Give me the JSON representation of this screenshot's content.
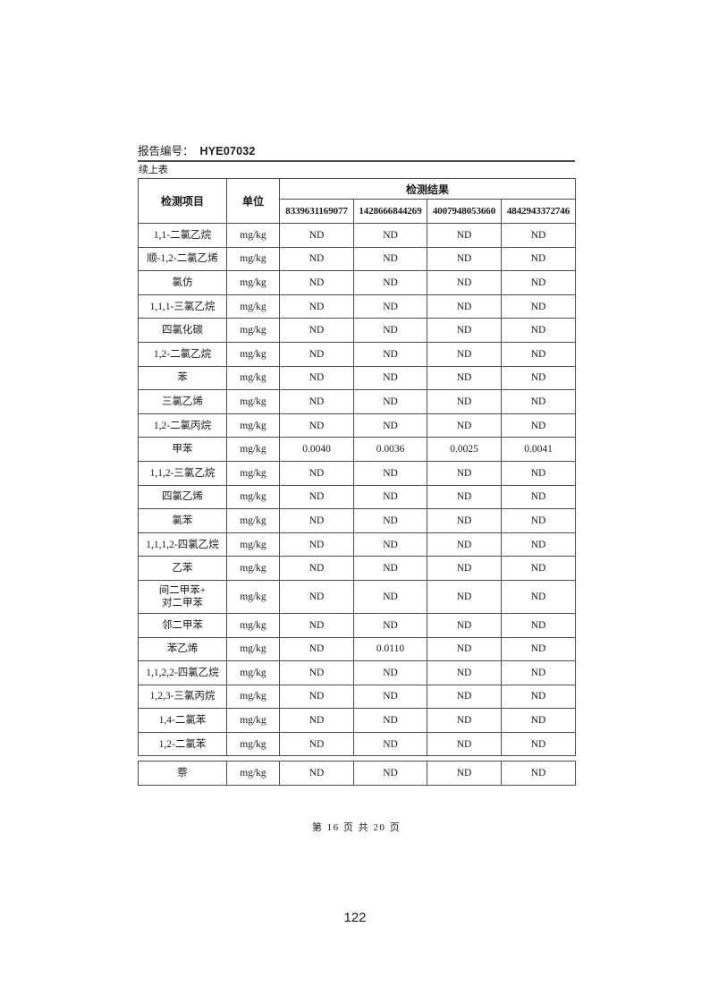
{
  "header": {
    "report_label": "报告编号：",
    "report_number": "HYE07032",
    "continued_note": "续上表"
  },
  "table": {
    "col_item": "检测项目",
    "col_unit": "单位",
    "col_results": "检测结果",
    "sample_ids": [
      "8339631169077",
      "1428666844269",
      "4007948053660",
      "4842943372746"
    ],
    "rows": [
      {
        "item": "1,1-二氯乙烷",
        "unit": "mg/kg",
        "values": [
          "ND",
          "ND",
          "ND",
          "ND"
        ]
      },
      {
        "item": "顺-1,2-二氯乙烯",
        "unit": "mg/kg",
        "values": [
          "ND",
          "ND",
          "ND",
          "ND"
        ]
      },
      {
        "item": "氯仿",
        "unit": "mg/kg",
        "values": [
          "ND",
          "ND",
          "ND",
          "ND"
        ]
      },
      {
        "item": "1,1,1-三氯乙烷",
        "unit": "mg/kg",
        "values": [
          "ND",
          "ND",
          "ND",
          "ND"
        ]
      },
      {
        "item": "四氯化碳",
        "unit": "mg/kg",
        "values": [
          "ND",
          "ND",
          "ND",
          "ND"
        ]
      },
      {
        "item": "1,2-二氯乙烷",
        "unit": "mg/kg",
        "values": [
          "ND",
          "ND",
          "ND",
          "ND"
        ]
      },
      {
        "item": "苯",
        "unit": "mg/kg",
        "values": [
          "ND",
          "ND",
          "ND",
          "ND"
        ]
      },
      {
        "item": "三氯乙烯",
        "unit": "mg/kg",
        "values": [
          "ND",
          "ND",
          "ND",
          "ND"
        ]
      },
      {
        "item": "1,2-二氯丙烷",
        "unit": "mg/kg",
        "values": [
          "ND",
          "ND",
          "ND",
          "ND"
        ]
      },
      {
        "item": "甲苯",
        "unit": "mg/kg",
        "values": [
          "0.0040",
          "0.0036",
          "0.0025",
          "0.0041"
        ]
      },
      {
        "item": "1,1,2-三氯乙烷",
        "unit": "mg/kg",
        "values": [
          "ND",
          "ND",
          "ND",
          "ND"
        ]
      },
      {
        "item": "四氯乙烯",
        "unit": "mg/kg",
        "values": [
          "ND",
          "ND",
          "ND",
          "ND"
        ]
      },
      {
        "item": "氯苯",
        "unit": "mg/kg",
        "values": [
          "ND",
          "ND",
          "ND",
          "ND"
        ]
      },
      {
        "item": "1,1,1,2-四氯乙烷",
        "unit": "mg/kg",
        "values": [
          "ND",
          "ND",
          "ND",
          "ND"
        ]
      },
      {
        "item": "乙苯",
        "unit": "mg/kg",
        "values": [
          "ND",
          "ND",
          "ND",
          "ND"
        ]
      },
      {
        "item": "间二甲苯+\n对二甲苯",
        "unit": "mg/kg",
        "values": [
          "ND",
          "ND",
          "ND",
          "ND"
        ],
        "tall": true
      },
      {
        "item": "邻二甲苯",
        "unit": "mg/kg",
        "values": [
          "ND",
          "ND",
          "ND",
          "ND"
        ]
      },
      {
        "item": "苯乙烯",
        "unit": "mg/kg",
        "values": [
          "ND",
          "0.0110",
          "ND",
          "ND"
        ]
      },
      {
        "item": "1,1,2,2-四氯乙烷",
        "unit": "mg/kg",
        "values": [
          "ND",
          "ND",
          "ND",
          "ND"
        ]
      },
      {
        "item": "1,2,3-三氯丙烷",
        "unit": "mg/kg",
        "values": [
          "ND",
          "ND",
          "ND",
          "ND"
        ]
      },
      {
        "item": "1,4-二氯苯",
        "unit": "mg/kg",
        "values": [
          "ND",
          "ND",
          "ND",
          "ND"
        ]
      },
      {
        "item": "1,2-二氯苯",
        "unit": "mg/kg",
        "values": [
          "ND",
          "ND",
          "ND",
          "ND"
        ]
      }
    ],
    "continuation_rows": [
      {
        "item": "萘",
        "unit": "mg/kg",
        "values": [
          "ND",
          "ND",
          "ND",
          "ND"
        ]
      }
    ]
  },
  "footer": {
    "page_info": "第 16 页 共 20 页",
    "page_number": "122"
  }
}
